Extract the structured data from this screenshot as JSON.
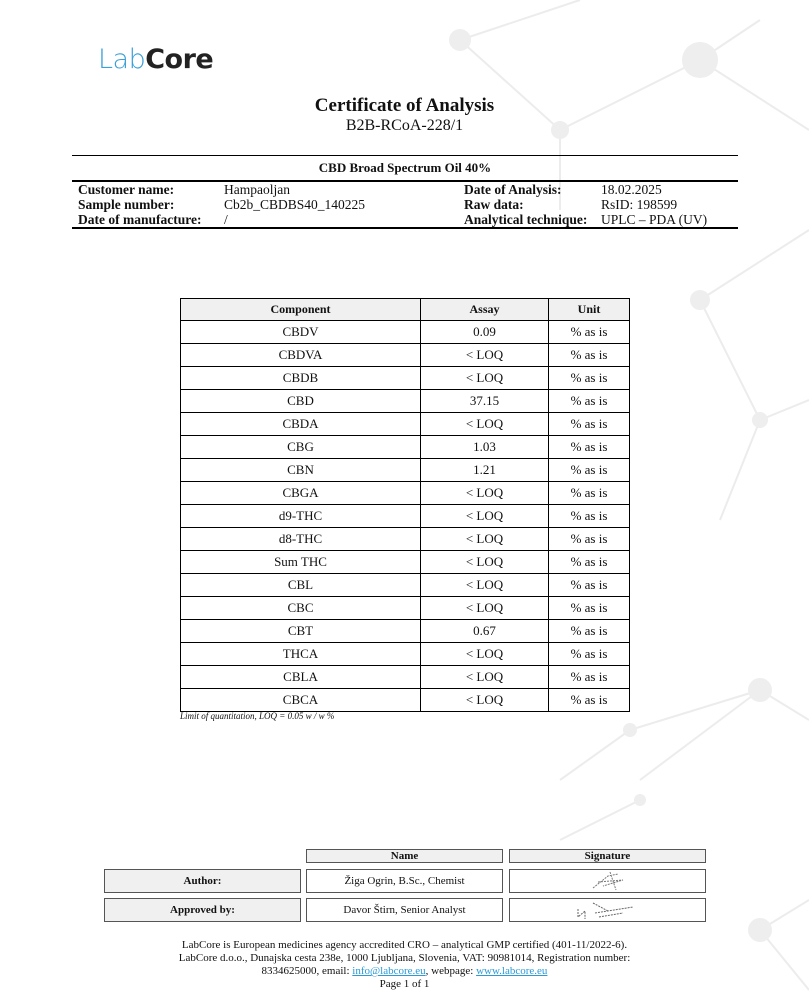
{
  "logo": {
    "part1": "Lab",
    "part2": "Core"
  },
  "title": "Certificate of Analysis",
  "certificate_number": "B2B-RCoA-228/1",
  "product": "CBD Broad Spectrum Oil 40%",
  "info": {
    "customer_label": "Customer name:",
    "customer": "Hampaoljan",
    "sample_label": "Sample number:",
    "sample": "Cb2b_CBDBS40_140225",
    "manufacture_label": "Date of manufacture:",
    "manufacture": "/",
    "analysis_date_label": "Date of Analysis:",
    "analysis_date": "18.02.2025",
    "raw_label": "Raw data:",
    "raw": "RsID: 198599",
    "technique_label": "Analytical technique:",
    "technique": "UPLC – PDA (UV)"
  },
  "table": {
    "headers": [
      "Component",
      "Assay",
      "Unit"
    ],
    "rows": [
      [
        "CBDV",
        "0.09",
        "% as is"
      ],
      [
        "CBDVA",
        "< LOQ",
        "% as is"
      ],
      [
        "CBDB",
        "< LOQ",
        "% as is"
      ],
      [
        "CBD",
        "37.15",
        "% as is"
      ],
      [
        "CBDA",
        "< LOQ",
        "% as is"
      ],
      [
        "CBG",
        "1.03",
        "% as is"
      ],
      [
        "CBN",
        "1.21",
        "% as is"
      ],
      [
        "CBGA",
        "< LOQ",
        "% as is"
      ],
      [
        "d9-THC",
        "< LOQ",
        "% as is"
      ],
      [
        "d8-THC",
        "< LOQ",
        "% as is"
      ],
      [
        "Sum THC",
        "< LOQ",
        "% as is"
      ],
      [
        "CBL",
        "< LOQ",
        "% as is"
      ],
      [
        "CBC",
        "< LOQ",
        "% as is"
      ],
      [
        "CBT",
        "0.67",
        "% as is"
      ],
      [
        "THCA",
        "< LOQ",
        "% as is"
      ],
      [
        "CBLA",
        "< LOQ",
        "% as is"
      ],
      [
        "CBCA",
        "< LOQ",
        "% as is"
      ]
    ],
    "note": "Limit of quantitation, LOQ = 0.05 w / w %"
  },
  "signatures": {
    "name_header": "Name",
    "signature_header": "Signature",
    "author_label": "Author:",
    "author": "Žiga Ogrin, B.Sc., Chemist",
    "approved_label": "Approved by:",
    "approved": "Davor Štirn, Senior Analyst"
  },
  "footer": {
    "line1": "LabCore is European medicines agency accredited CRO – analytical GMP certified (401-11/2022-6).",
    "line2": "LabCore d.o.o., Dunajska cesta 238e, 1000 Ljubljana, Slovenia, VAT: 90981014, Registration number:",
    "line3_pre": "8334625000, email: ",
    "email": "info@labcore.eu",
    "line3_mid": ", webpage: ",
    "web": "www.labcore.eu",
    "page": "Page 1 of 1"
  },
  "colors": {
    "accent": "#3aa0d8",
    "header_fill": "#f0f0f0"
  }
}
